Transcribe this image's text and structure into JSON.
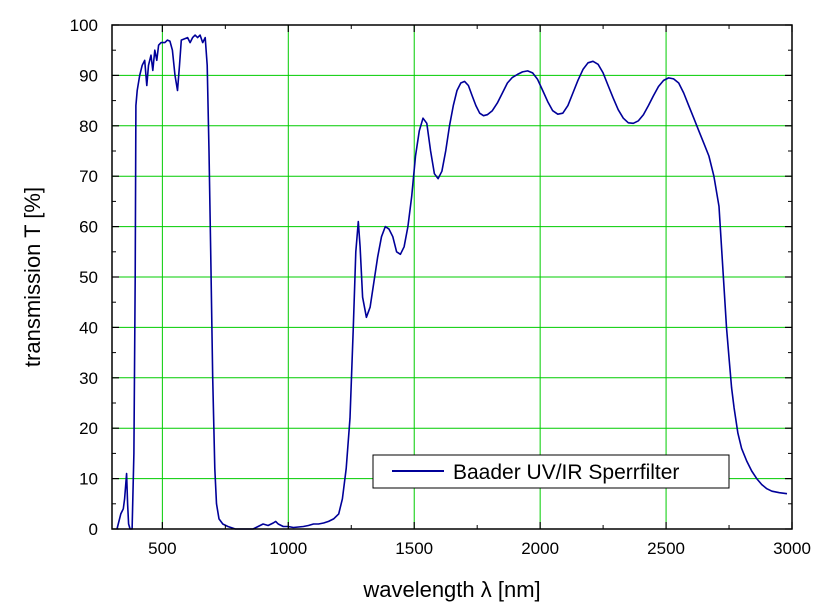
{
  "chart_data": {
    "type": "line",
    "xlabel": "wavelength λ [nm]",
    "ylabel": "transmission T [%]",
    "xlim": [
      300,
      3000
    ],
    "ylim": [
      0,
      100
    ],
    "x_ticks": [
      500,
      1000,
      1500,
      2000,
      2500,
      3000
    ],
    "y_ticks": [
      0,
      10,
      20,
      30,
      40,
      50,
      60,
      70,
      80,
      90,
      100
    ],
    "grid": true,
    "grid_color": "#00cc00",
    "legend_position": "bottom-right",
    "series": [
      {
        "name": "Baader UV/IR Sperrfilter",
        "color": "#000099",
        "points": [
          [
            320,
            0
          ],
          [
            335,
            3
          ],
          [
            345,
            4
          ],
          [
            350,
            6
          ],
          [
            358,
            11
          ],
          [
            362,
            5
          ],
          [
            366,
            1
          ],
          [
            372,
            0
          ],
          [
            380,
            0
          ],
          [
            387,
            15
          ],
          [
            392,
            50
          ],
          [
            395,
            84
          ],
          [
            400,
            87
          ],
          [
            410,
            90
          ],
          [
            420,
            92
          ],
          [
            430,
            93
          ],
          [
            438,
            88
          ],
          [
            445,
            92
          ],
          [
            455,
            94
          ],
          [
            462,
            91
          ],
          [
            470,
            95
          ],
          [
            478,
            93
          ],
          [
            485,
            96
          ],
          [
            495,
            96.5
          ],
          [
            510,
            96.5
          ],
          [
            520,
            97
          ],
          [
            530,
            96.8
          ],
          [
            540,
            95
          ],
          [
            550,
            90
          ],
          [
            560,
            87
          ],
          [
            568,
            92
          ],
          [
            575,
            97
          ],
          [
            590,
            97.3
          ],
          [
            600,
            97.5
          ],
          [
            610,
            96.5
          ],
          [
            620,
            97.5
          ],
          [
            630,
            98
          ],
          [
            640,
            97.5
          ],
          [
            650,
            98
          ],
          [
            660,
            96.5
          ],
          [
            670,
            97.5
          ],
          [
            678,
            92
          ],
          [
            685,
            75
          ],
          [
            692,
            55
          ],
          [
            700,
            30
          ],
          [
            708,
            12
          ],
          [
            715,
            5
          ],
          [
            725,
            2
          ],
          [
            740,
            1
          ],
          [
            760,
            0.5
          ],
          [
            790,
            0
          ],
          [
            820,
            0
          ],
          [
            860,
            0
          ],
          [
            880,
            0.5
          ],
          [
            900,
            1
          ],
          [
            920,
            0.7
          ],
          [
            940,
            1.2
          ],
          [
            950,
            1.5
          ],
          [
            960,
            1
          ],
          [
            980,
            0.5
          ],
          [
            1000,
            0.5
          ],
          [
            1020,
            0.3
          ],
          [
            1040,
            0.4
          ],
          [
            1060,
            0.5
          ],
          [
            1080,
            0.7
          ],
          [
            1100,
            1
          ],
          [
            1120,
            1
          ],
          [
            1140,
            1.2
          ],
          [
            1160,
            1.5
          ],
          [
            1180,
            2
          ],
          [
            1200,
            3
          ],
          [
            1215,
            6
          ],
          [
            1230,
            12
          ],
          [
            1245,
            22
          ],
          [
            1258,
            40
          ],
          [
            1268,
            55
          ],
          [
            1278,
            61
          ],
          [
            1285,
            56
          ],
          [
            1295,
            46
          ],
          [
            1310,
            42
          ],
          [
            1325,
            44
          ],
          [
            1340,
            49
          ],
          [
            1355,
            54
          ],
          [
            1370,
            58
          ],
          [
            1385,
            60
          ],
          [
            1400,
            59.5
          ],
          [
            1415,
            58
          ],
          [
            1430,
            55
          ],
          [
            1445,
            54.5
          ],
          [
            1460,
            56
          ],
          [
            1475,
            60
          ],
          [
            1490,
            66
          ],
          [
            1505,
            74
          ],
          [
            1520,
            79
          ],
          [
            1535,
            81.5
          ],
          [
            1550,
            80.5
          ],
          [
            1565,
            75
          ],
          [
            1580,
            70.5
          ],
          [
            1595,
            69.5
          ],
          [
            1610,
            71
          ],
          [
            1625,
            75
          ],
          [
            1640,
            80
          ],
          [
            1655,
            84
          ],
          [
            1670,
            87
          ],
          [
            1685,
            88.5
          ],
          [
            1700,
            88.8
          ],
          [
            1715,
            88
          ],
          [
            1730,
            86
          ],
          [
            1745,
            84
          ],
          [
            1760,
            82.5
          ],
          [
            1775,
            82
          ],
          [
            1790,
            82.2
          ],
          [
            1810,
            83
          ],
          [
            1830,
            84.5
          ],
          [
            1850,
            86.5
          ],
          [
            1870,
            88.5
          ],
          [
            1890,
            89.6
          ],
          [
            1910,
            90.2
          ],
          [
            1930,
            90.7
          ],
          [
            1950,
            90.9
          ],
          [
            1970,
            90.5
          ],
          [
            1990,
            89.2
          ],
          [
            2010,
            87
          ],
          [
            2030,
            84.8
          ],
          [
            2050,
            83
          ],
          [
            2070,
            82.3
          ],
          [
            2090,
            82.5
          ],
          [
            2110,
            84
          ],
          [
            2130,
            86.5
          ],
          [
            2150,
            89
          ],
          [
            2170,
            91.2
          ],
          [
            2190,
            92.5
          ],
          [
            2210,
            92.8
          ],
          [
            2230,
            92.2
          ],
          [
            2250,
            90.5
          ],
          [
            2270,
            88
          ],
          [
            2290,
            85.5
          ],
          [
            2310,
            83.2
          ],
          [
            2330,
            81.5
          ],
          [
            2350,
            80.6
          ],
          [
            2370,
            80.5
          ],
          [
            2390,
            81
          ],
          [
            2410,
            82.2
          ],
          [
            2430,
            84
          ],
          [
            2450,
            86
          ],
          [
            2470,
            87.8
          ],
          [
            2490,
            89
          ],
          [
            2510,
            89.5
          ],
          [
            2530,
            89.3
          ],
          [
            2550,
            88.5
          ],
          [
            2570,
            86.5
          ],
          [
            2590,
            84
          ],
          [
            2610,
            81.5
          ],
          [
            2630,
            79
          ],
          [
            2650,
            76.5
          ],
          [
            2670,
            74
          ],
          [
            2690,
            70
          ],
          [
            2710,
            64
          ],
          [
            2720,
            56
          ],
          [
            2730,
            48
          ],
          [
            2740,
            40
          ],
          [
            2750,
            34
          ],
          [
            2760,
            28
          ],
          [
            2770,
            24
          ],
          [
            2785,
            19
          ],
          [
            2800,
            16
          ],
          [
            2820,
            13.5
          ],
          [
            2840,
            11.5
          ],
          [
            2860,
            10
          ],
          [
            2880,
            8.8
          ],
          [
            2900,
            8
          ],
          [
            2920,
            7.5
          ],
          [
            2950,
            7.2
          ],
          [
            2980,
            7
          ]
        ]
      }
    ]
  }
}
